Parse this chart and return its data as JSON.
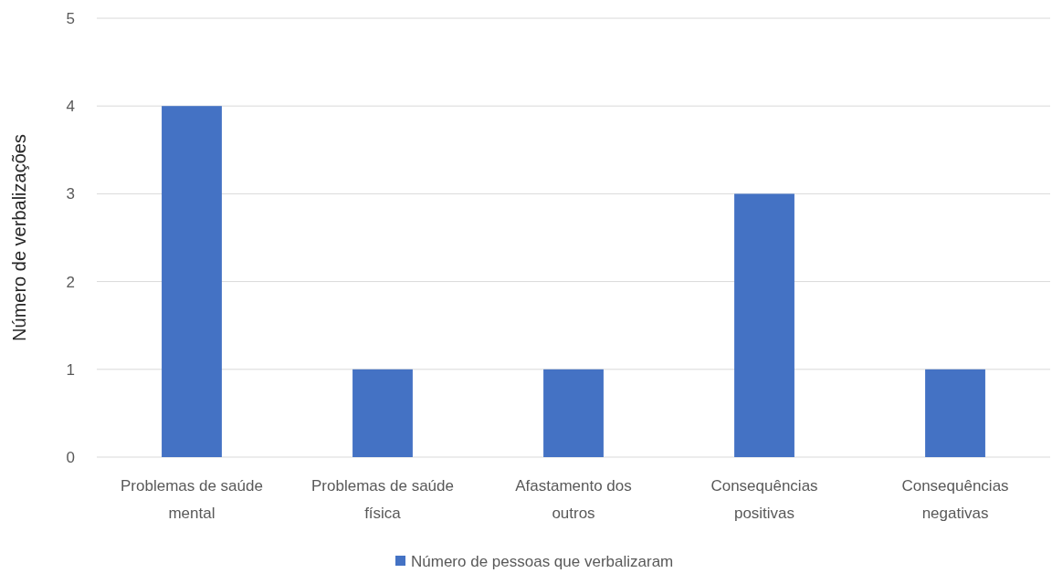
{
  "chart_data": {
    "type": "bar",
    "ylabel": "Número de verbalizações",
    "categories": [
      "Problemas de saúde mental",
      "Problemas de saúde física",
      "Afastamento dos outros",
      "Consequências positivas",
      "Consequências negativas"
    ],
    "series": [
      {
        "name": "Número de pessoas que verbalizaram",
        "color": "#4472c4",
        "values": [
          4,
          1,
          1,
          3,
          1
        ]
      }
    ],
    "ylim": [
      0,
      5
    ],
    "yticks": [
      0,
      1,
      2,
      3,
      4,
      5
    ],
    "grid": "y",
    "legend": "bottom"
  }
}
